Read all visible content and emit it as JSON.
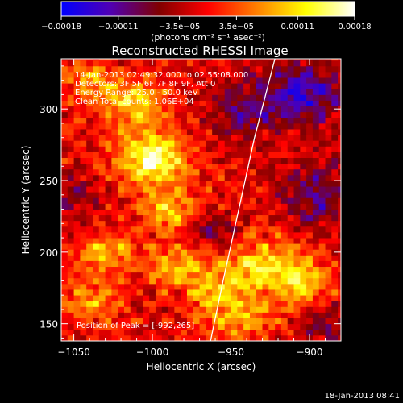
{
  "chart_data": {
    "type": "heatmap",
    "title": "Reconstructed RHESSI Image",
    "xlabel": "Heliocentric X (arcsec)",
    "ylabel": "Heliocentric Y (arcsec)",
    "xlim": [
      -1058,
      -880
    ],
    "ylim": [
      138,
      335
    ],
    "x_ticks": [
      -1050,
      -1000,
      -950,
      -900
    ],
    "x_tick_labels": [
      "−1050",
      "−1000",
      "−950",
      "−900"
    ],
    "y_ticks": [
      150,
      200,
      250,
      300
    ],
    "y_tick_labels": [
      "150",
      "200",
      "250",
      "300"
    ],
    "colorbar": {
      "min": -0.00018,
      "max": 0.00018,
      "ticks": [
        -0.00018,
        -0.00011,
        -3.5e-05,
        3.5e-05,
        0.00011,
        0.00018
      ],
      "tick_labels": [
        "−0.00018",
        "−0.00011",
        "−3.5e−05",
        "3.5e−05",
        "0.00011",
        "0.00018"
      ],
      "units_label": "(photons cm⁻² s⁻¹ asec⁻²)",
      "colors": [
        "#0000ff",
        "#5000b4",
        "#800000",
        "#ff0000",
        "#ff8000",
        "#ffff00",
        "#ffffff"
      ]
    },
    "annotations": [
      "14-Jan-2013 02:49:32.000 to 02:55:08.000",
      "Detectors: 3F 5F 6F 7F 8F 9F, Att 0",
      "Energy Range: 25.0 - 50.0 keV",
      "Clean      Total counts: 1.06E+04"
    ],
    "peak_label": "Position of Peak = [-992,265]",
    "peak": {
      "x": -992,
      "y": 265
    },
    "limb": [
      [
        -963,
        138
      ],
      [
        -955,
        180
      ],
      [
        -945,
        230
      ],
      [
        -935,
        280
      ],
      [
        -922,
        335
      ]
    ],
    "hot_spots": [
      {
        "x": -1000,
        "y": 265,
        "amp": 0.00017,
        "sx": 16,
        "sy": 12
      },
      {
        "x": -1012,
        "y": 305,
        "amp": 0.00012,
        "sx": 14,
        "sy": 12
      },
      {
        "x": -990,
        "y": 230,
        "amp": 0.00011,
        "sx": 12,
        "sy": 10
      },
      {
        "x": -1030,
        "y": 200,
        "amp": 0.0001,
        "sx": 12,
        "sy": 10
      },
      {
        "x": -985,
        "y": 190,
        "amp": 0.0001,
        "sx": 14,
        "sy": 10
      },
      {
        "x": -960,
        "y": 175,
        "amp": 9e-05,
        "sx": 12,
        "sy": 10
      },
      {
        "x": -930,
        "y": 190,
        "amp": 0.00012,
        "sx": 16,
        "sy": 14
      },
      {
        "x": -905,
        "y": 180,
        "amp": 0.0001,
        "sx": 12,
        "sy": 12
      },
      {
        "x": -1040,
        "y": 165,
        "amp": 8e-05,
        "sx": 12,
        "sy": 10
      },
      {
        "x": -945,
        "y": 155,
        "amp": 9e-05,
        "sx": 16,
        "sy": 10
      },
      {
        "x": -1040,
        "y": 320,
        "amp": 8e-05,
        "sx": 10,
        "sy": 10
      }
    ],
    "cold_spots": [
      {
        "x": -905,
        "y": 310,
        "amp": -0.00012,
        "sx": 18,
        "sy": 16
      },
      {
        "x": -945,
        "y": 300,
        "amp": -8e-05,
        "sx": 14,
        "sy": 14
      },
      {
        "x": -895,
        "y": 240,
        "amp": -9e-05,
        "sx": 16,
        "sy": 16
      },
      {
        "x": -960,
        "y": 215,
        "amp": -6e-05,
        "sx": 10,
        "sy": 10
      },
      {
        "x": -1050,
        "y": 240,
        "amp": -5e-05,
        "sx": 10,
        "sy": 12
      },
      {
        "x": -890,
        "y": 150,
        "amp": -6e-05,
        "sx": 12,
        "sy": 10
      }
    ],
    "grid": false
  },
  "footer": {
    "timestamp": "18-Jan-2013 08:41"
  }
}
